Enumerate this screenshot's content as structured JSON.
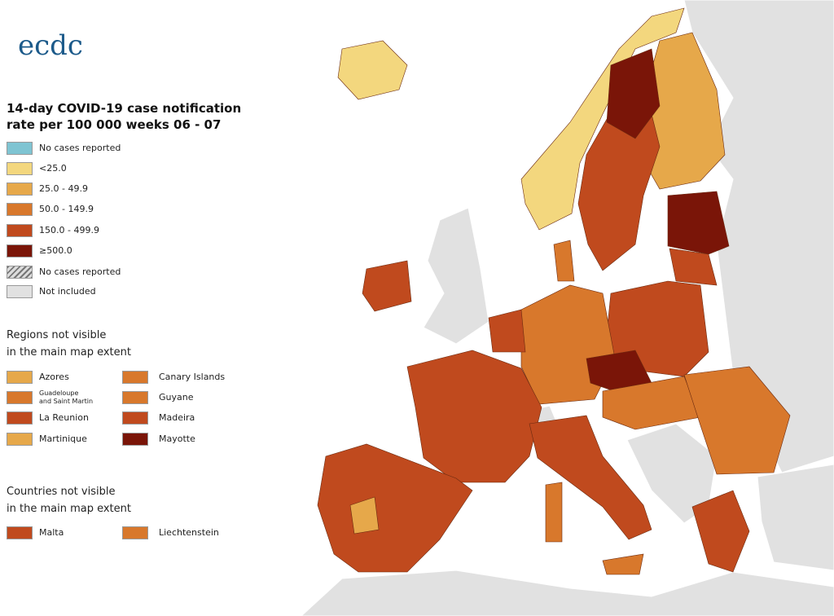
{
  "logo": {
    "text": "ecdc"
  },
  "title_lines": [
    "14-day COVID-19 case notification",
    "rate per 100 000 weeks  06 - 07"
  ],
  "legend": [
    {
      "label": "No cases reported",
      "color": "#7fc4d2"
    },
    {
      "label": "<25.0",
      "color": "#f3d77e"
    },
    {
      "label": "25.0 - 49.9",
      "color": "#e6a84a"
    },
    {
      "label": "50.0 - 149.9",
      "color": "#d8782c"
    },
    {
      "label": "150.0 - 499.9",
      "color": "#c04a1e"
    },
    {
      "label": "≥500.0",
      "color": "#7a1508"
    },
    {
      "label": "No cases reported",
      "color": "hatch"
    },
    {
      "label": "Not included",
      "color": "#e1e1e1"
    }
  ],
  "regions": {
    "heading_lines": [
      "Regions not visible",
      "in the main map extent"
    ],
    "items": [
      {
        "label": [
          "Azores"
        ],
        "color": "#e6a84a"
      },
      {
        "label": [
          "Canary Islands"
        ],
        "color": "#d8782c"
      },
      {
        "label": [
          "Guadeloupe",
          "and Saint Martin"
        ],
        "color": "#d8782c"
      },
      {
        "label": [
          "Guyane"
        ],
        "color": "#d8782c"
      },
      {
        "label": [
          "La Reunion"
        ],
        "color": "#c04a1e"
      },
      {
        "label": [
          "Madeira"
        ],
        "color": "#c04a1e"
      },
      {
        "label": [
          "Martinique"
        ],
        "color": "#e6a84a"
      },
      {
        "label": [
          "Mayotte"
        ],
        "color": "#7a1508"
      }
    ]
  },
  "countries": {
    "heading_lines": [
      "Countries not visible",
      "in the main map extent"
    ],
    "items": [
      {
        "label": [
          "Malta"
        ],
        "color": "#c04a1e"
      },
      {
        "label": [
          "Liechtenstein"
        ],
        "color": "#d8782c"
      }
    ]
  }
}
